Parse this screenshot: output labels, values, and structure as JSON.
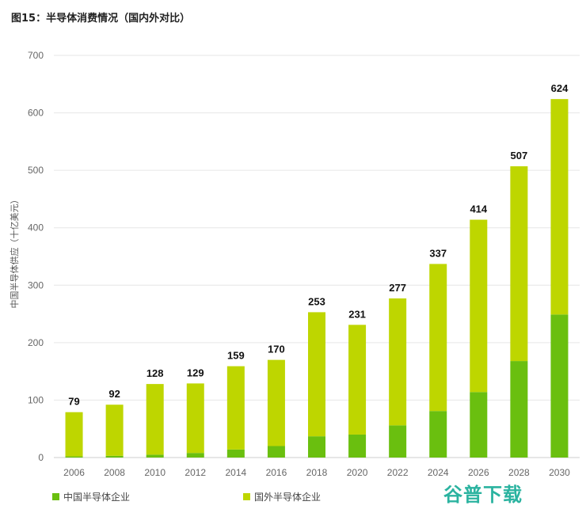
{
  "title": "图15：半导体消费情况（国内外对比）",
  "watermark": "谷普下载",
  "chart_data": {
    "type": "bar",
    "stacked": true,
    "title": "图15：半导体消费情况（国内外对比）",
    "xlabel": "",
    "ylabel": "中国半导体供应（十亿美元）",
    "ylim": [
      0,
      700
    ],
    "yticks": [
      "0",
      "100",
      "200",
      "300",
      "400",
      "500",
      "600",
      "700"
    ],
    "grid": true,
    "legend_position": "bottom",
    "categories": [
      "2006",
      "2008",
      "2010",
      "2012",
      "2014",
      "2016",
      "2018",
      "2020",
      "2022",
      "2024",
      "2026",
      "2028",
      "2030"
    ],
    "totals": [
      "79",
      "92",
      "128",
      "129",
      "159",
      "170",
      "253",
      "231",
      "277",
      "337",
      "414",
      "507",
      "624"
    ],
    "series": [
      {
        "name": "中国半导体企业",
        "color": "#6abf0f",
        "values": [
          2,
          3,
          5,
          8,
          14,
          20,
          37,
          40,
          56,
          81,
          114,
          168,
          249
        ]
      },
      {
        "name": "国外半导体企业",
        "color": "#bed600",
        "values": [
          77,
          89,
          123,
          121,
          145,
          150,
          216,
          191,
          221,
          256,
          300,
          339,
          375
        ]
      }
    ]
  }
}
